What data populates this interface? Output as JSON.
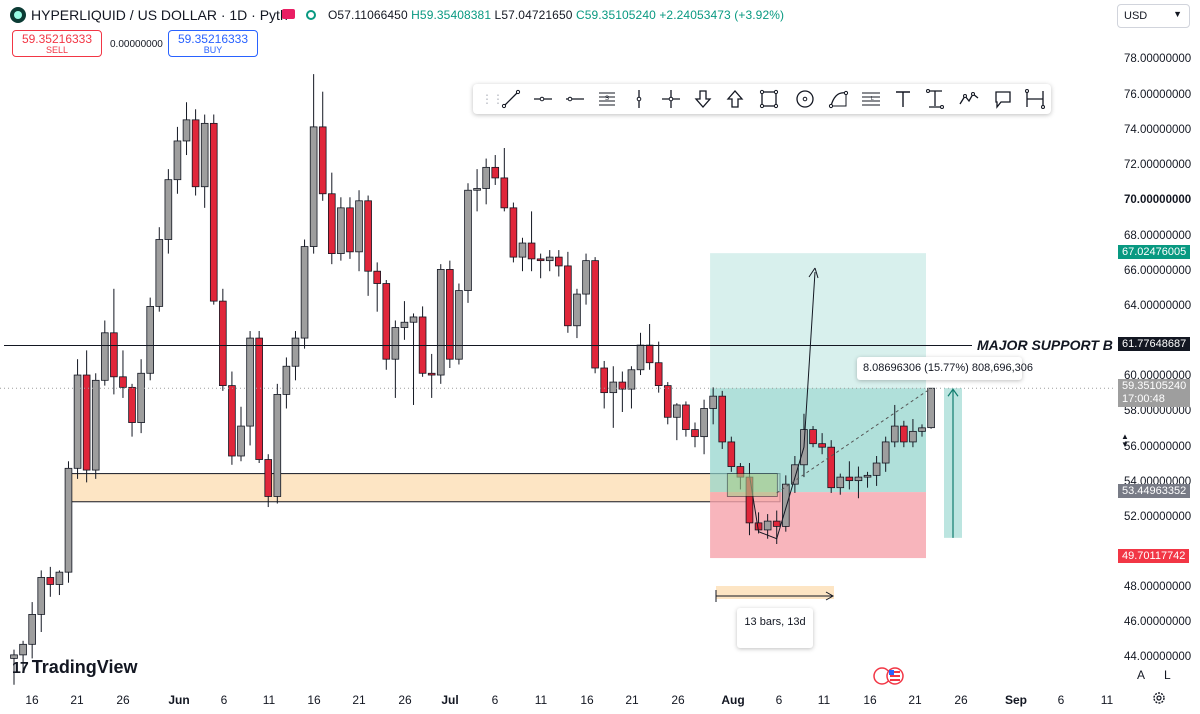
{
  "header": {
    "title": "HYPERLIQUID / US DOLLAR · 1D · Pyth",
    "ohlc": {
      "open": "O57.11066450",
      "high": "H59.35408381",
      "low": "L57.04721650",
      "close": "C59.35105240",
      "change": "+2.24053473 (+3.92%)"
    }
  },
  "trade": {
    "sell_price": "59.35216333",
    "sell_label": "SELL",
    "spread": "0.00000000",
    "buy_price": "59.35216333",
    "buy_label": "BUY"
  },
  "currency": "USD",
  "toolbar": {
    "tools": [
      "trend-line-icon",
      "horizontal-ray-icon",
      "horizontal-line-icon",
      "parallel-channel-icon",
      "vertical-line-icon",
      "cross-line-icon",
      "arrow-mark-down-icon",
      "arrow-mark-up-icon",
      "rectangle-icon",
      "circle-icon",
      "curve-icon",
      "fib-retracement-icon",
      "text-icon",
      "anchored-text-icon",
      "path-icon",
      "callout-icon",
      "date-price-range-icon"
    ]
  },
  "y_axis": {
    "labels": [
      "78.00000000",
      "76.00000000",
      "74.00000000",
      "72.00000000",
      "70.00000000",
      "68.00000000",
      "66.00000000",
      "64.00000000",
      "60.00000000",
      "58.00000000",
      "56.00000000",
      "54.00000000",
      "52.00000000",
      "48.00000000",
      "46.00000000",
      "44.00000000"
    ],
    "bold_label": "70.00000000",
    "tags": {
      "target": "67.02476005",
      "support": "61.77648687",
      "last_price": "59.35105240",
      "countdown": "17:00:48",
      "entry": "53.44963352",
      "stop": "49.70117742"
    }
  },
  "x_axis": {
    "labels": [
      "16",
      "21",
      "26",
      "Jun",
      "6",
      "11",
      "16",
      "21",
      "26",
      "Jul",
      "6",
      "11",
      "16",
      "21",
      "26",
      "Aug",
      "6",
      "11",
      "16",
      "21",
      "26",
      "Sep",
      "6",
      "11"
    ]
  },
  "annotations": {
    "support_label": "MAJOR SUPPORT B",
    "measure": "8.08696306 (15.77%) 808,696,306",
    "bars_range": "13 bars, 13d"
  },
  "branding": {
    "logo_text": "TradingView"
  },
  "controls": {
    "auto_scale": "A",
    "log_scale": "L"
  },
  "colors": {
    "up": "#089981",
    "down": "#f23645",
    "up_candle_fill": "#9e9e9e",
    "down_candle_fill": "#e0263a",
    "support_zone": "#fde5c4",
    "target_zone": "#8fd3cb",
    "stop_zone": "#f6a3ab"
  },
  "chart_data": {
    "type": "candlestick",
    "symbol": "HYPERLIQUID / US DOLLAR",
    "interval": "1D",
    "ylim": [
      43.5,
      80
    ],
    "support_level": 61.77648687,
    "zone": [
      52.9,
      54.5
    ],
    "position": {
      "entry": 53.44963352,
      "target": 67.02476005,
      "stop": 49.70117742,
      "start_day": 76,
      "end_day": 98
    },
    "first_date": "May 13",
    "candles": [
      [
        44.0,
        44.5,
        42.5,
        44.2
      ],
      [
        44.2,
        45.0,
        43.2,
        44.8
      ],
      [
        44.8,
        47.2,
        44.0,
        46.5
      ],
      [
        46.5,
        49.0,
        45.5,
        48.6
      ],
      [
        48.6,
        49.2,
        47.5,
        48.2
      ],
      [
        48.2,
        49.0,
        47.6,
        48.9
      ],
      [
        48.9,
        55.2,
        48.3,
        54.8
      ],
      [
        54.8,
        61.0,
        54.2,
        60.1
      ],
      [
        60.1,
        61.5,
        54.0,
        54.7
      ],
      [
        54.7,
        60.2,
        54.2,
        59.8
      ],
      [
        59.8,
        63.2,
        59.5,
        62.5
      ],
      [
        62.5,
        65.0,
        59.0,
        60.0
      ],
      [
        60.0,
        61.5,
        58.8,
        59.4
      ],
      [
        59.4,
        59.6,
        56.6,
        57.4
      ],
      [
        57.4,
        61.0,
        56.8,
        60.2
      ],
      [
        60.2,
        64.5,
        59.8,
        64.0
      ],
      [
        64.0,
        68.5,
        63.7,
        67.8
      ],
      [
        67.8,
        71.8,
        67.0,
        71.2
      ],
      [
        71.2,
        74.2,
        70.4,
        73.4
      ],
      [
        73.4,
        75.6,
        72.6,
        74.6
      ],
      [
        74.6,
        75.2,
        70.3,
        70.8
      ],
      [
        70.8,
        74.9,
        69.6,
        74.4
      ],
      [
        74.4,
        74.9,
        64.1,
        64.3
      ],
      [
        64.3,
        65.0,
        59.2,
        59.5
      ],
      [
        59.5,
        60.3,
        55.0,
        55.5
      ],
      [
        55.5,
        58.3,
        55.2,
        57.2
      ],
      [
        57.2,
        62.6,
        56.1,
        62.2
      ],
      [
        62.2,
        62.6,
        55.1,
        55.3
      ],
      [
        55.3,
        55.6,
        52.6,
        53.2
      ],
      [
        53.2,
        59.6,
        52.8,
        59.0
      ],
      [
        59.0,
        61.1,
        58.2,
        60.6
      ],
      [
        60.6,
        62.6,
        59.8,
        62.2
      ],
      [
        62.2,
        67.8,
        61.6,
        67.4
      ],
      [
        67.4,
        77.2,
        67.0,
        74.2
      ],
      [
        74.2,
        76.2,
        70.0,
        70.4
      ],
      [
        70.4,
        71.6,
        66.4,
        67.0
      ],
      [
        67.0,
        70.2,
        66.6,
        69.6
      ],
      [
        69.6,
        70.2,
        66.7,
        67.1
      ],
      [
        67.1,
        70.6,
        66.0,
        70.0
      ],
      [
        70.0,
        70.3,
        64.6,
        66.0
      ],
      [
        66.0,
        66.5,
        63.7,
        65.3
      ],
      [
        65.3,
        65.5,
        60.4,
        61.0
      ],
      [
        61.0,
        63.2,
        58.8,
        62.8
      ],
      [
        62.8,
        64.3,
        62.1,
        63.1
      ],
      [
        63.1,
        63.6,
        58.4,
        63.4
      ],
      [
        63.4,
        64.0,
        60.0,
        60.2
      ],
      [
        60.2,
        61.3,
        58.8,
        60.1
      ],
      [
        60.1,
        66.4,
        59.6,
        66.1
      ],
      [
        66.1,
        66.6,
        60.5,
        61.0
      ],
      [
        61.0,
        65.3,
        60.7,
        64.9
      ],
      [
        64.9,
        71.0,
        64.2,
        70.6
      ],
      [
        70.6,
        71.8,
        69.4,
        70.7
      ],
      [
        70.7,
        72.4,
        69.8,
        71.9
      ],
      [
        71.9,
        72.6,
        70.9,
        71.3
      ],
      [
        71.3,
        73.0,
        69.4,
        69.6
      ],
      [
        69.6,
        69.9,
        66.5,
        66.8
      ],
      [
        66.8,
        67.9,
        66.0,
        67.6
      ],
      [
        67.6,
        69.4,
        66.0,
        66.7
      ],
      [
        66.7,
        67.0,
        65.6,
        66.6
      ],
      [
        66.6,
        67.2,
        66.0,
        66.8
      ],
      [
        66.8,
        67.2,
        65.7,
        66.3
      ],
      [
        66.3,
        67.1,
        62.5,
        62.9
      ],
      [
        62.9,
        65.0,
        62.2,
        64.7
      ],
      [
        64.7,
        67.0,
        64.1,
        66.6
      ],
      [
        66.6,
        66.8,
        60.2,
        60.5
      ],
      [
        60.5,
        60.9,
        58.2,
        59.1
      ],
      [
        59.1,
        60.6,
        57.1,
        59.7
      ],
      [
        59.7,
        60.3,
        58.0,
        59.3
      ],
      [
        59.3,
        60.6,
        58.2,
        60.4
      ],
      [
        60.4,
        62.5,
        60.1,
        61.8
      ],
      [
        61.8,
        63.0,
        60.4,
        60.8
      ],
      [
        60.8,
        62.0,
        59.1,
        59.5
      ],
      [
        59.5,
        59.7,
        57.3,
        57.7
      ],
      [
        57.7,
        58.5,
        56.4,
        58.4
      ],
      [
        58.4,
        58.6,
        56.6,
        57.0
      ],
      [
        57.0,
        57.4,
        56.0,
        56.6
      ],
      [
        56.6,
        58.7,
        55.6,
        58.2
      ],
      [
        58.2,
        59.4,
        57.3,
        58.9
      ],
      [
        58.9,
        59.2,
        55.9,
        56.3
      ],
      [
        56.3,
        56.6,
        54.6,
        54.9
      ],
      [
        54.9,
        55.1,
        53.6,
        54.3
      ],
      [
        54.3,
        55.1,
        51.0,
        51.7
      ],
      [
        51.7,
        52.3,
        51.1,
        51.3
      ],
      [
        51.3,
        52.2,
        50.8,
        51.8
      ],
      [
        51.8,
        52.4,
        50.5,
        51.5
      ],
      [
        51.5,
        54.4,
        51.2,
        53.9
      ],
      [
        53.9,
        55.5,
        53.4,
        55.0
      ],
      [
        55.0,
        57.9,
        54.3,
        57.0
      ],
      [
        57.0,
        57.2,
        56.0,
        56.2
      ],
      [
        56.2,
        56.8,
        55.6,
        56.0
      ],
      [
        56.0,
        56.4,
        53.4,
        53.7
      ],
      [
        53.7,
        54.5,
        53.3,
        54.3
      ],
      [
        54.3,
        55.2,
        53.6,
        54.1
      ],
      [
        54.1,
        54.9,
        53.1,
        54.3
      ],
      [
        54.3,
        54.6,
        53.7,
        54.4
      ],
      [
        54.4,
        55.5,
        53.8,
        55.1
      ],
      [
        55.1,
        56.6,
        54.6,
        56.3
      ],
      [
        56.3,
        58.4,
        56.0,
        57.2
      ],
      [
        57.2,
        57.5,
        56.0,
        56.3
      ],
      [
        56.3,
        57.6,
        56.0,
        56.9
      ],
      [
        56.9,
        57.3,
        56.6,
        57.1
      ],
      [
        57.1106645,
        59.35408381,
        57.0472165,
        59.3510524
      ]
    ]
  }
}
